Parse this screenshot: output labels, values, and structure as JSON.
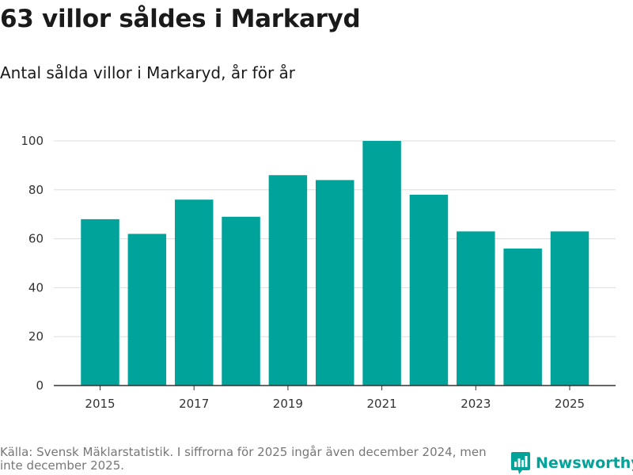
{
  "title": "63 villor såldes i Markaryd",
  "subtitle": "Antal sålda villor i Markaryd, år för år",
  "source": "Källa: Svensk Mäklarstatistik. I siffrorna för 2025 ingår även december 2024, men inte december 2025.",
  "brand": {
    "name": "Newsworthy",
    "color": "#00a39a",
    "icon": "newsworthy-logo-icon"
  },
  "colors": {
    "bar": "#00a39a",
    "grid": "#dddddd",
    "axis": "#333333"
  },
  "chart_data": {
    "type": "bar",
    "title": "63 villor såldes i Markaryd",
    "subtitle": "Antal sålda villor i Markaryd, år för år",
    "categories": [
      "2015",
      "2016",
      "2017",
      "2018",
      "2019",
      "2020",
      "2021",
      "2022",
      "2023",
      "2024",
      "2025"
    ],
    "values": [
      68,
      62,
      76,
      69,
      86,
      84,
      100,
      78,
      63,
      56,
      63
    ],
    "x_tick_labels": [
      "2015",
      "2017",
      "2019",
      "2021",
      "2023",
      "2025"
    ],
    "y_ticks": [
      "0",
      "20",
      "40",
      "60",
      "80",
      "100"
    ],
    "ylim": [
      0,
      100
    ],
    "xlabel": "",
    "ylabel": "",
    "grid": true,
    "legend": "none"
  }
}
